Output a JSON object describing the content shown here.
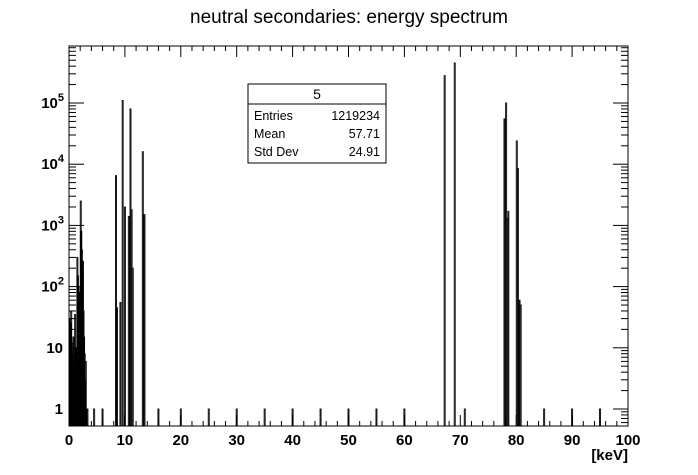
{
  "chart_data": {
    "type": "bar",
    "title": "neutral secondaries: energy spectrum",
    "xlabel": "[keV]",
    "ylabel": "",
    "xlim": [
      0,
      100
    ],
    "ylim": [
      0.5,
      1000000
    ],
    "yscale": "log",
    "grid": false,
    "x_ticks": [
      "0",
      "10",
      "20",
      "30",
      "40",
      "50",
      "60",
      "70",
      "80",
      "90",
      "100"
    ],
    "y_ticks": [
      {
        "value": 1,
        "label": "1"
      },
      {
        "value": 10,
        "label": "10"
      },
      {
        "value": 100,
        "label": "10^2"
      },
      {
        "value": 1000,
        "label": "10^3"
      },
      {
        "value": 10000,
        "label": "10^4"
      },
      {
        "value": 100000,
        "label": "10^5"
      }
    ],
    "bin_width": 0.1,
    "bins": [
      {
        "x": 0.1,
        "y": 20
      },
      {
        "x": 0.2,
        "y": 30
      },
      {
        "x": 0.3,
        "y": 25
      },
      {
        "x": 0.4,
        "y": 40
      },
      {
        "x": 0.5,
        "y": 8
      },
      {
        "x": 0.6,
        "y": 12
      },
      {
        "x": 0.7,
        "y": 5
      },
      {
        "x": 0.8,
        "y": 15
      },
      {
        "x": 0.9,
        "y": 3
      },
      {
        "x": 1.0,
        "y": 6
      },
      {
        "x": 1.1,
        "y": 35
      },
      {
        "x": 1.2,
        "y": 10
      },
      {
        "x": 1.3,
        "y": 4
      },
      {
        "x": 1.5,
        "y": 300
      },
      {
        "x": 1.6,
        "y": 150
      },
      {
        "x": 1.7,
        "y": 100
      },
      {
        "x": 1.8,
        "y": 60
      },
      {
        "x": 1.9,
        "y": 50
      },
      {
        "x": 2.0,
        "y": 80
      },
      {
        "x": 2.1,
        "y": 2500
      },
      {
        "x": 2.2,
        "y": 800
      },
      {
        "x": 2.3,
        "y": 400
      },
      {
        "x": 2.4,
        "y": 200
      },
      {
        "x": 2.5,
        "y": 260
      },
      {
        "x": 2.6,
        "y": 40
      },
      {
        "x": 2.7,
        "y": 15
      },
      {
        "x": 2.8,
        "y": 8
      },
      {
        "x": 2.9,
        "y": 3
      },
      {
        "x": 3.0,
        "y": 6
      },
      {
        "x": 3.3,
        "y": 1
      },
      {
        "x": 4.5,
        "y": 1
      },
      {
        "x": 6.0,
        "y": 1
      },
      {
        "x": 8.4,
        "y": 6500
      },
      {
        "x": 8.6,
        "y": 45
      },
      {
        "x": 9.2,
        "y": 55
      },
      {
        "x": 9.6,
        "y": 110000
      },
      {
        "x": 10.0,
        "y": 2000
      },
      {
        "x": 10.7,
        "y": 1400
      },
      {
        "x": 11.0,
        "y": 80000
      },
      {
        "x": 11.2,
        "y": 1800
      },
      {
        "x": 11.4,
        "y": 200
      },
      {
        "x": 13.2,
        "y": 16000
      },
      {
        "x": 13.5,
        "y": 1500
      },
      {
        "x": 16.0,
        "y": 1
      },
      {
        "x": 20.0,
        "y": 1
      },
      {
        "x": 25.0,
        "y": 1
      },
      {
        "x": 30.0,
        "y": 1
      },
      {
        "x": 35.0,
        "y": 1
      },
      {
        "x": 40.0,
        "y": 1
      },
      {
        "x": 45.0,
        "y": 1
      },
      {
        "x": 50.0,
        "y": 1
      },
      {
        "x": 55.0,
        "y": 1
      },
      {
        "x": 60.0,
        "y": 1
      },
      {
        "x": 67.2,
        "y": 280000
      },
      {
        "x": 69.0,
        "y": 450000
      },
      {
        "x": 70.8,
        "y": 1
      },
      {
        "x": 77.9,
        "y": 55000
      },
      {
        "x": 78.2,
        "y": 100000
      },
      {
        "x": 78.4,
        "y": 1300
      },
      {
        "x": 78.6,
        "y": 1700
      },
      {
        "x": 80.1,
        "y": 24000
      },
      {
        "x": 80.3,
        "y": 8500
      },
      {
        "x": 80.6,
        "y": 60
      },
      {
        "x": 80.8,
        "y": 50
      },
      {
        "x": 85.0,
        "y": 1
      },
      {
        "x": 90.0,
        "y": 1
      },
      {
        "x": 95.0,
        "y": 1
      }
    ],
    "stats_box": {
      "title": "5",
      "rows": [
        {
          "label": "Entries",
          "value": "1219234"
        },
        {
          "label": "Mean",
          "value": "57.71"
        },
        {
          "label": "Std Dev",
          "value": "24.91"
        }
      ]
    }
  }
}
